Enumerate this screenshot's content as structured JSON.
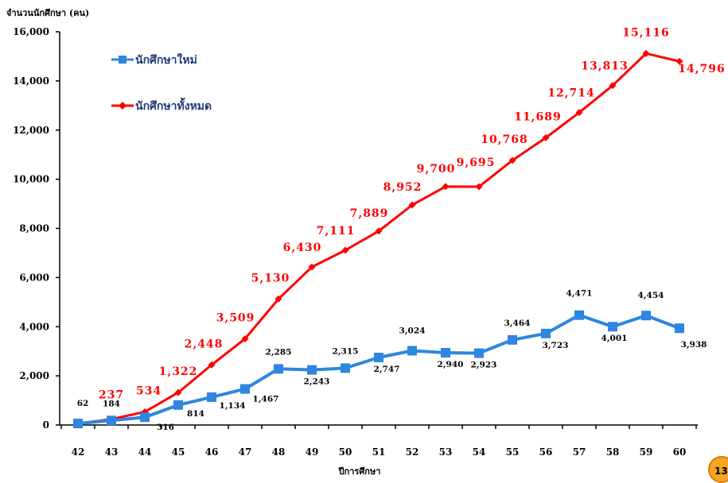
{
  "page_badge": "13",
  "chart_data": {
    "type": "line",
    "title": "",
    "ylabel": "จำนวนนักศึกษา (คน)",
    "xlabel": "ปีการศึกษา",
    "ylim": [
      0,
      16000
    ],
    "yticks": [
      0,
      2000,
      4000,
      6000,
      8000,
      10000,
      12000,
      14000,
      16000
    ],
    "ytick_labels": [
      "0",
      "2,000",
      "4,000",
      "6,000",
      "8,000",
      "10,000",
      "12,000",
      "14,000",
      "16,000"
    ],
    "categories": [
      "42",
      "43",
      "44",
      "45",
      "46",
      "47",
      "48",
      "49",
      "50",
      "51",
      "52",
      "53",
      "54",
      "55",
      "56",
      "57",
      "58",
      "59",
      "60"
    ],
    "grid": false,
    "legend_position": "top-left",
    "series": [
      {
        "name": "นักศึกษาใหม่",
        "color": "#2e86de",
        "marker": "square",
        "values": [
          62,
          184,
          316,
          814,
          1134,
          1467,
          2285,
          2243,
          2315,
          2747,
          3024,
          2940,
          2923,
          3464,
          3723,
          4471,
          4001,
          4454,
          3938
        ],
        "labels": [
          "62",
          "184",
          "316",
          "814",
          "1,134",
          "1,467",
          "2,285",
          "2,243",
          "2,315",
          "2,747",
          "3,024",
          "2,940",
          "2,923",
          "3,464",
          "3,723",
          "4,471",
          "4,001",
          "4,454",
          "3,938"
        ]
      },
      {
        "name": "นักศึกษาทั้งหมด",
        "color": "#ff0000",
        "marker": "diamond",
        "values": [
          62,
          237,
          534,
          1322,
          2448,
          3509,
          5130,
          6430,
          7111,
          7889,
          8952,
          9700,
          9695,
          10768,
          11689,
          12714,
          13813,
          15116,
          14796
        ],
        "labels": [
          "",
          "237",
          "534",
          "1,322",
          "2,448",
          "3,509",
          "5,130",
          "6,430",
          "7,111",
          "7,889",
          "8,952",
          "9,700",
          "9,695",
          "10,768",
          "11,689",
          "12,714",
          "13,813",
          "15,116",
          "14,796"
        ]
      }
    ]
  }
}
